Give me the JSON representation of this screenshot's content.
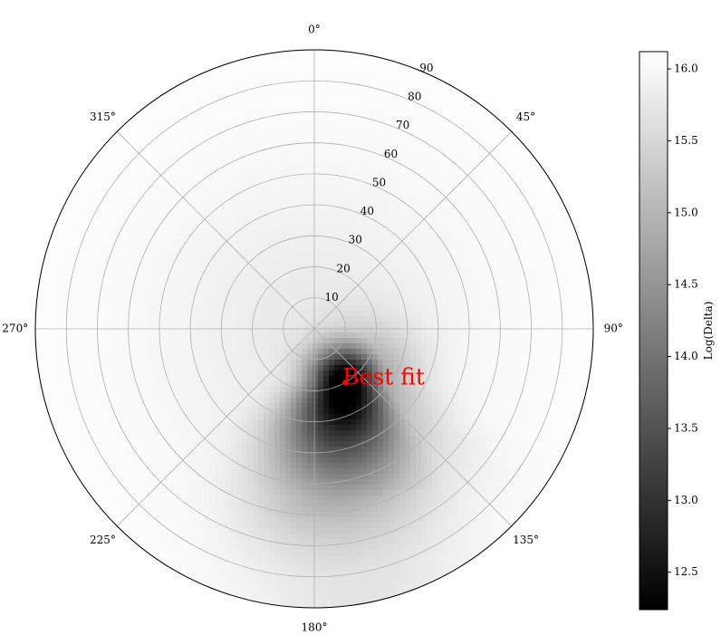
{
  "chart_data": {
    "type": "heatmap",
    "projection": "polar",
    "theta_zero_location": "top",
    "theta_direction": "clockwise",
    "theta_ticks": [
      0,
      45,
      90,
      135,
      180,
      225,
      270,
      315
    ],
    "theta_tick_labels": [
      "0°",
      "45°",
      "90°",
      "135°",
      "180°",
      "225°",
      "270°",
      "315°"
    ],
    "r_ticks": [
      10,
      20,
      30,
      40,
      50,
      60,
      70,
      80,
      90
    ],
    "r_tick_labels": [
      "10",
      "20",
      "30",
      "40",
      "50",
      "60",
      "70",
      "80",
      "90"
    ],
    "rlim": [
      0,
      90
    ],
    "grid": true,
    "colormap": "gray",
    "colorbar": {
      "label": "Log(Delta)",
      "range": [
        12.24,
        16.12
      ],
      "ticks": [
        12.5,
        13.0,
        13.5,
        14.0,
        14.5,
        15.0,
        15.5,
        16.0
      ],
      "tick_labels": [
        "12.5",
        "13.0",
        "13.5",
        "14.0",
        "14.5",
        "15.0",
        "15.5",
        "16.0"
      ],
      "position": "right"
    },
    "field_model": {
      "min_location": {
        "theta_deg": 150,
        "r": 20
      },
      "min_value": 12.25,
      "max_value": 16.1,
      "valley": [
        {
          "theta_deg": 150,
          "r": 20
        },
        {
          "theta_deg": 165,
          "r": 35
        },
        {
          "theta_deg": 170,
          "r": 55
        },
        {
          "theta_deg": 170,
          "r": 80
        }
      ]
    },
    "annotation": {
      "text": "Best fit",
      "color": "#ff0000",
      "theta_deg": 150,
      "r": 20
    }
  }
}
